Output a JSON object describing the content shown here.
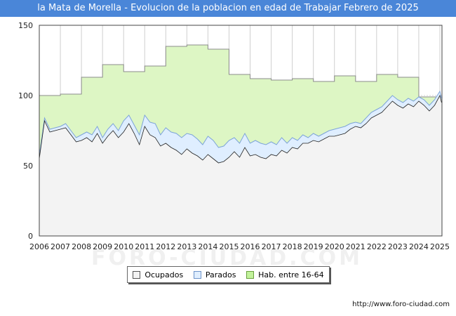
{
  "title": "la Mata de Morella - Evolucion de la poblacion en edad de Trabajar Febrero de 2025",
  "source": "http://www.foro-ciudad.com",
  "watermark": "FORO-CIUDAD.COM",
  "colors": {
    "title_bg": "#4a86d8",
    "habitantes_fill": "#ddf6c4",
    "habitantes_line": "#8c8c8c",
    "parados_fill": "#dfeeff",
    "parados_line": "#7da4d8",
    "ocupados_fill": "#f3f3f3",
    "ocupados_line": "#222222"
  },
  "chart_data": {
    "type": "area",
    "x_range": [
      2006,
      2025.1
    ],
    "ylim": [
      0,
      150
    ],
    "y_ticks": [
      0,
      50,
      100,
      150
    ],
    "x_ticks": [
      "2006",
      "2007",
      "2008",
      "2009",
      "2010",
      "2011",
      "2012",
      "2013",
      "2014",
      "2015",
      "2016",
      "2017",
      "2018",
      "2019",
      "2020",
      "2021",
      "2022",
      "2023",
      "2024",
      "2025"
    ],
    "grid": true,
    "legend_position": "bottom",
    "series": [
      {
        "name": "Hab. entre 16-64",
        "kind": "step",
        "x": [
          2006,
          2007,
          2008,
          2009,
          2010,
          2011,
          2012,
          2013,
          2014,
          2015,
          2016,
          2017,
          2018,
          2019,
          2020,
          2021,
          2022,
          2023,
          2024
        ],
        "values": [
          100,
          101,
          113,
          122,
          117,
          121,
          135,
          136,
          133,
          115,
          112,
          111,
          112,
          110,
          114,
          110,
          115,
          113,
          99
        ]
      },
      {
        "name": "Parados",
        "kind": "line",
        "x": [
          2006.0,
          2006.25,
          2006.5,
          2006.75,
          2007.0,
          2007.25,
          2007.5,
          2007.75,
          2008.0,
          2008.25,
          2008.5,
          2008.75,
          2009.0,
          2009.25,
          2009.5,
          2009.75,
          2010.0,
          2010.25,
          2010.5,
          2010.75,
          2011.0,
          2011.25,
          2011.5,
          2011.75,
          2012.0,
          2012.25,
          2012.5,
          2012.75,
          2013.0,
          2013.25,
          2013.5,
          2013.75,
          2014.0,
          2014.25,
          2014.5,
          2014.75,
          2015.0,
          2015.25,
          2015.5,
          2015.75,
          2016.0,
          2016.25,
          2016.5,
          2016.75,
          2017.0,
          2017.25,
          2017.5,
          2017.75,
          2018.0,
          2018.25,
          2018.5,
          2018.75,
          2019.0,
          2019.25,
          2019.5,
          2019.75,
          2020.0,
          2020.25,
          2020.5,
          2020.75,
          2021.0,
          2021.25,
          2021.5,
          2021.75,
          2022.0,
          2022.25,
          2022.5,
          2022.75,
          2023.0,
          2023.25,
          2023.5,
          2023.75,
          2024.0,
          2024.25,
          2024.5,
          2024.75,
          2025.0,
          2025.08
        ],
        "values": [
          57,
          84,
          76,
          77,
          78,
          80,
          75,
          70,
          72,
          74,
          72,
          78,
          70,
          76,
          80,
          75,
          82,
          86,
          79,
          72,
          86,
          81,
          80,
          72,
          77,
          74,
          73,
          70,
          73,
          72,
          69,
          65,
          71,
          68,
          63,
          64,
          68,
          70,
          66,
          73,
          66,
          68,
          66,
          65,
          67,
          65,
          70,
          66,
          70,
          68,
          72,
          70,
          73,
          71,
          73,
          75,
          76,
          77,
          78,
          80,
          81,
          80,
          84,
          88,
          90,
          92,
          96,
          100,
          97,
          95,
          98,
          96,
          99,
          97,
          93,
          97,
          103,
          98
        ]
      },
      {
        "name": "Ocupados",
        "kind": "line",
        "x": [
          2006.0,
          2006.25,
          2006.5,
          2006.75,
          2007.0,
          2007.25,
          2007.5,
          2007.75,
          2008.0,
          2008.25,
          2008.5,
          2008.75,
          2009.0,
          2009.25,
          2009.5,
          2009.75,
          2010.0,
          2010.25,
          2010.5,
          2010.75,
          2011.0,
          2011.25,
          2011.5,
          2011.75,
          2012.0,
          2012.25,
          2012.5,
          2012.75,
          2013.0,
          2013.25,
          2013.5,
          2013.75,
          2014.0,
          2014.25,
          2014.5,
          2014.75,
          2015.0,
          2015.25,
          2015.5,
          2015.75,
          2016.0,
          2016.25,
          2016.5,
          2016.75,
          2017.0,
          2017.25,
          2017.5,
          2017.75,
          2018.0,
          2018.25,
          2018.5,
          2018.75,
          2019.0,
          2019.25,
          2019.5,
          2019.75,
          2020.0,
          2020.25,
          2020.5,
          2020.75,
          2021.0,
          2021.25,
          2021.5,
          2021.75,
          2022.0,
          2022.25,
          2022.5,
          2022.75,
          2023.0,
          2023.25,
          2023.5,
          2023.75,
          2024.0,
          2024.25,
          2024.5,
          2024.75,
          2025.0,
          2025.08
        ],
        "values": [
          55,
          82,
          74,
          75,
          76,
          77,
          72,
          67,
          68,
          70,
          67,
          73,
          66,
          71,
          75,
          70,
          74,
          80,
          73,
          65,
          78,
          72,
          70,
          64,
          66,
          63,
          61,
          58,
          62,
          59,
          57,
          54,
          58,
          55,
          52,
          53,
          56,
          60,
          56,
          63,
          57,
          58,
          56,
          55,
          58,
          57,
          61,
          59,
          63,
          62,
          66,
          66,
          68,
          67,
          69,
          71,
          71,
          72,
          73,
          76,
          78,
          77,
          80,
          84,
          86,
          88,
          92,
          96,
          93,
          91,
          94,
          92,
          96,
          93,
          89,
          93,
          100,
          95
        ]
      }
    ]
  },
  "legend": {
    "ocupados": "Ocupados",
    "parados": "Parados",
    "habitantes": "Hab. entre 16-64"
  }
}
